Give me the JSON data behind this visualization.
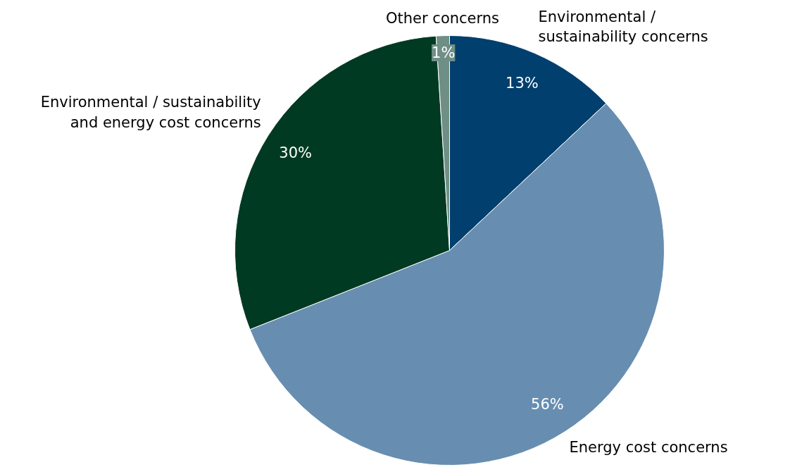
{
  "chart_data": {
    "type": "pie",
    "categories": [
      "Environmental /\nsustainability concerns",
      "Energy cost concerns",
      "Environmental / sustainability\nand energy cost concerns",
      "Other concerns"
    ],
    "values": [
      13,
      56,
      30,
      1
    ],
    "colors": [
      "#003f6e",
      "#678eb0",
      "#003a22",
      "#6f8f86"
    ],
    "value_labels": [
      "13%",
      "56%",
      "30%",
      "1%"
    ]
  }
}
